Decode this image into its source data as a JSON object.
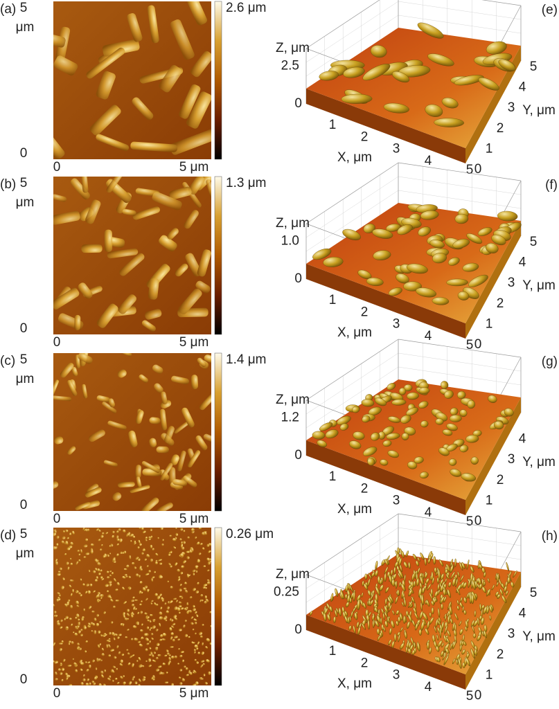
{
  "panels_2d": [
    {
      "label": "(a)",
      "y_top": "5",
      "y_unit": "μm",
      "y_bottom": "0",
      "x_left": "0",
      "x_right": "5 μm",
      "scale_max": "2.6 μm"
    },
    {
      "label": "(b)",
      "y_top": "5",
      "y_unit": "μm",
      "y_bottom": "0",
      "x_left": "0",
      "x_right": "5 μm",
      "scale_max": "1.3 μm"
    },
    {
      "label": "(c)",
      "y_top": "5",
      "y_unit": "μm",
      "y_bottom": "0",
      "x_left": "0",
      "x_right": "5 μm",
      "scale_max": "1.4 μm"
    },
    {
      "label": "(d)",
      "y_top": "5",
      "y_unit": "μm",
      "y_bottom": "0",
      "x_left": "0",
      "x_right": "5 μm",
      "scale_max": "0.26 μm"
    }
  ],
  "panels_3d": [
    {
      "label": "(e)",
      "z_label": "Z, μm",
      "z_ticks": [
        "0",
        "2.5"
      ],
      "x_label": "X, μm",
      "x_ticks": [
        "1",
        "2",
        "3",
        "4",
        "5"
      ],
      "y_label": "Y, μm",
      "y_ticks": [
        "0",
        "1",
        "2",
        "3",
        "4",
        "5"
      ]
    },
    {
      "label": "(f)",
      "z_label": "Z, μm",
      "z_ticks": [
        "0",
        "1.0"
      ],
      "x_label": "X, μm",
      "x_ticks": [
        "1",
        "2",
        "3",
        "4",
        "5"
      ],
      "y_label": "Y, μm",
      "y_ticks": [
        "0",
        "1",
        "2",
        "3",
        "4",
        "5"
      ]
    },
    {
      "label": "(g)",
      "z_label": "Z, μm",
      "z_ticks": [
        "0",
        "1.2"
      ],
      "x_label": "X, μm",
      "x_ticks": [
        "1",
        "2",
        "3",
        "4",
        "5"
      ],
      "y_label": "Y, μm",
      "y_ticks": [
        "0",
        "1",
        "2",
        "3",
        "4"
      ]
    },
    {
      "label": "(h)",
      "z_label": "Z, μm",
      "z_ticks": [
        "0",
        "0.25"
      ],
      "x_label": "X, μm",
      "x_ticks": [
        "1",
        "2",
        "3",
        "4",
        "5"
      ],
      "y_label": "Y, μm",
      "y_ticks": [
        "0",
        "1",
        "2",
        "3",
        "4",
        "5"
      ]
    }
  ]
}
